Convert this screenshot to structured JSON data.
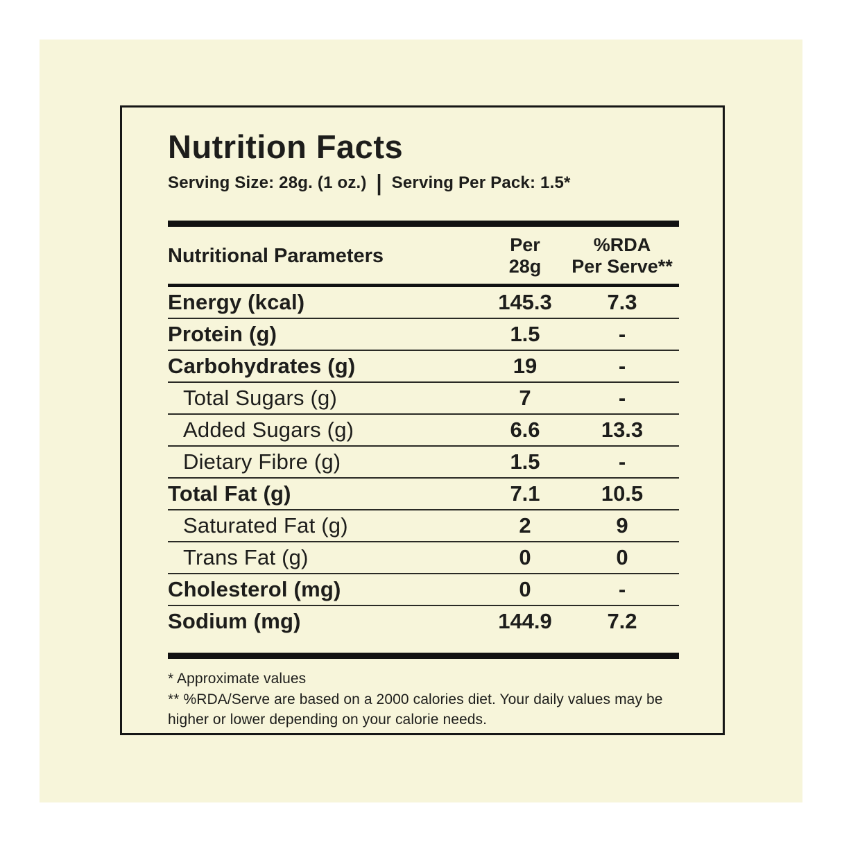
{
  "colors": {
    "page_background": "#ffffff",
    "card_background": "#f7f5da",
    "text_ink": "#1d1d1b",
    "rule_black": "#111111"
  },
  "header": {
    "title": "Nutrition Facts",
    "serving_size": "Serving Size: 28g. (1 oz.)",
    "separator": "|",
    "serving_per_pack": "Serving Per Pack: 1.5*"
  },
  "table": {
    "columns": {
      "label_header": "Nutritional Parameters",
      "per_line1": "Per",
      "per_line2": "28g",
      "rda_line1": "%RDA",
      "rda_line2": "Per Serve**"
    },
    "rows": [
      {
        "label": "Energy (kcal)",
        "per": "145.3",
        "rda": "7.3",
        "emphasis": true,
        "indent": false
      },
      {
        "label": "Protein (g)",
        "per": "1.5",
        "rda": "-",
        "emphasis": true,
        "indent": false
      },
      {
        "label": "Carbohydrates (g)",
        "per": "19",
        "rda": "-",
        "emphasis": true,
        "indent": false
      },
      {
        "label": "Total Sugars (g)",
        "per": "7",
        "rda": "-",
        "emphasis": false,
        "indent": true
      },
      {
        "label": "Added Sugars (g)",
        "per": "6.6",
        "rda": "13.3",
        "emphasis": false,
        "indent": true
      },
      {
        "label": "Dietary Fibre (g)",
        "per": "1.5",
        "rda": "-",
        "emphasis": false,
        "indent": true
      },
      {
        "label": "Total Fat (g)",
        "per": "7.1",
        "rda": "10.5",
        "emphasis": true,
        "indent": false
      },
      {
        "label": "Saturated Fat (g)",
        "per": "2",
        "rda": "9",
        "emphasis": false,
        "indent": true
      },
      {
        "label": "Trans Fat (g)",
        "per": "0",
        "rda": "0",
        "emphasis": false,
        "indent": true
      },
      {
        "label": "Cholesterol (mg)",
        "per": "0",
        "rda": "-",
        "emphasis": true,
        "indent": false
      },
      {
        "label": "Sodium (mg)",
        "per": "144.9",
        "rda": "7.2",
        "emphasis": true,
        "indent": false
      }
    ]
  },
  "footnotes": [
    "* Approximate values",
    "** %RDA/Serve are based on a 2000 calories diet. Your daily values may be higher or lower depending on your calorie needs."
  ]
}
